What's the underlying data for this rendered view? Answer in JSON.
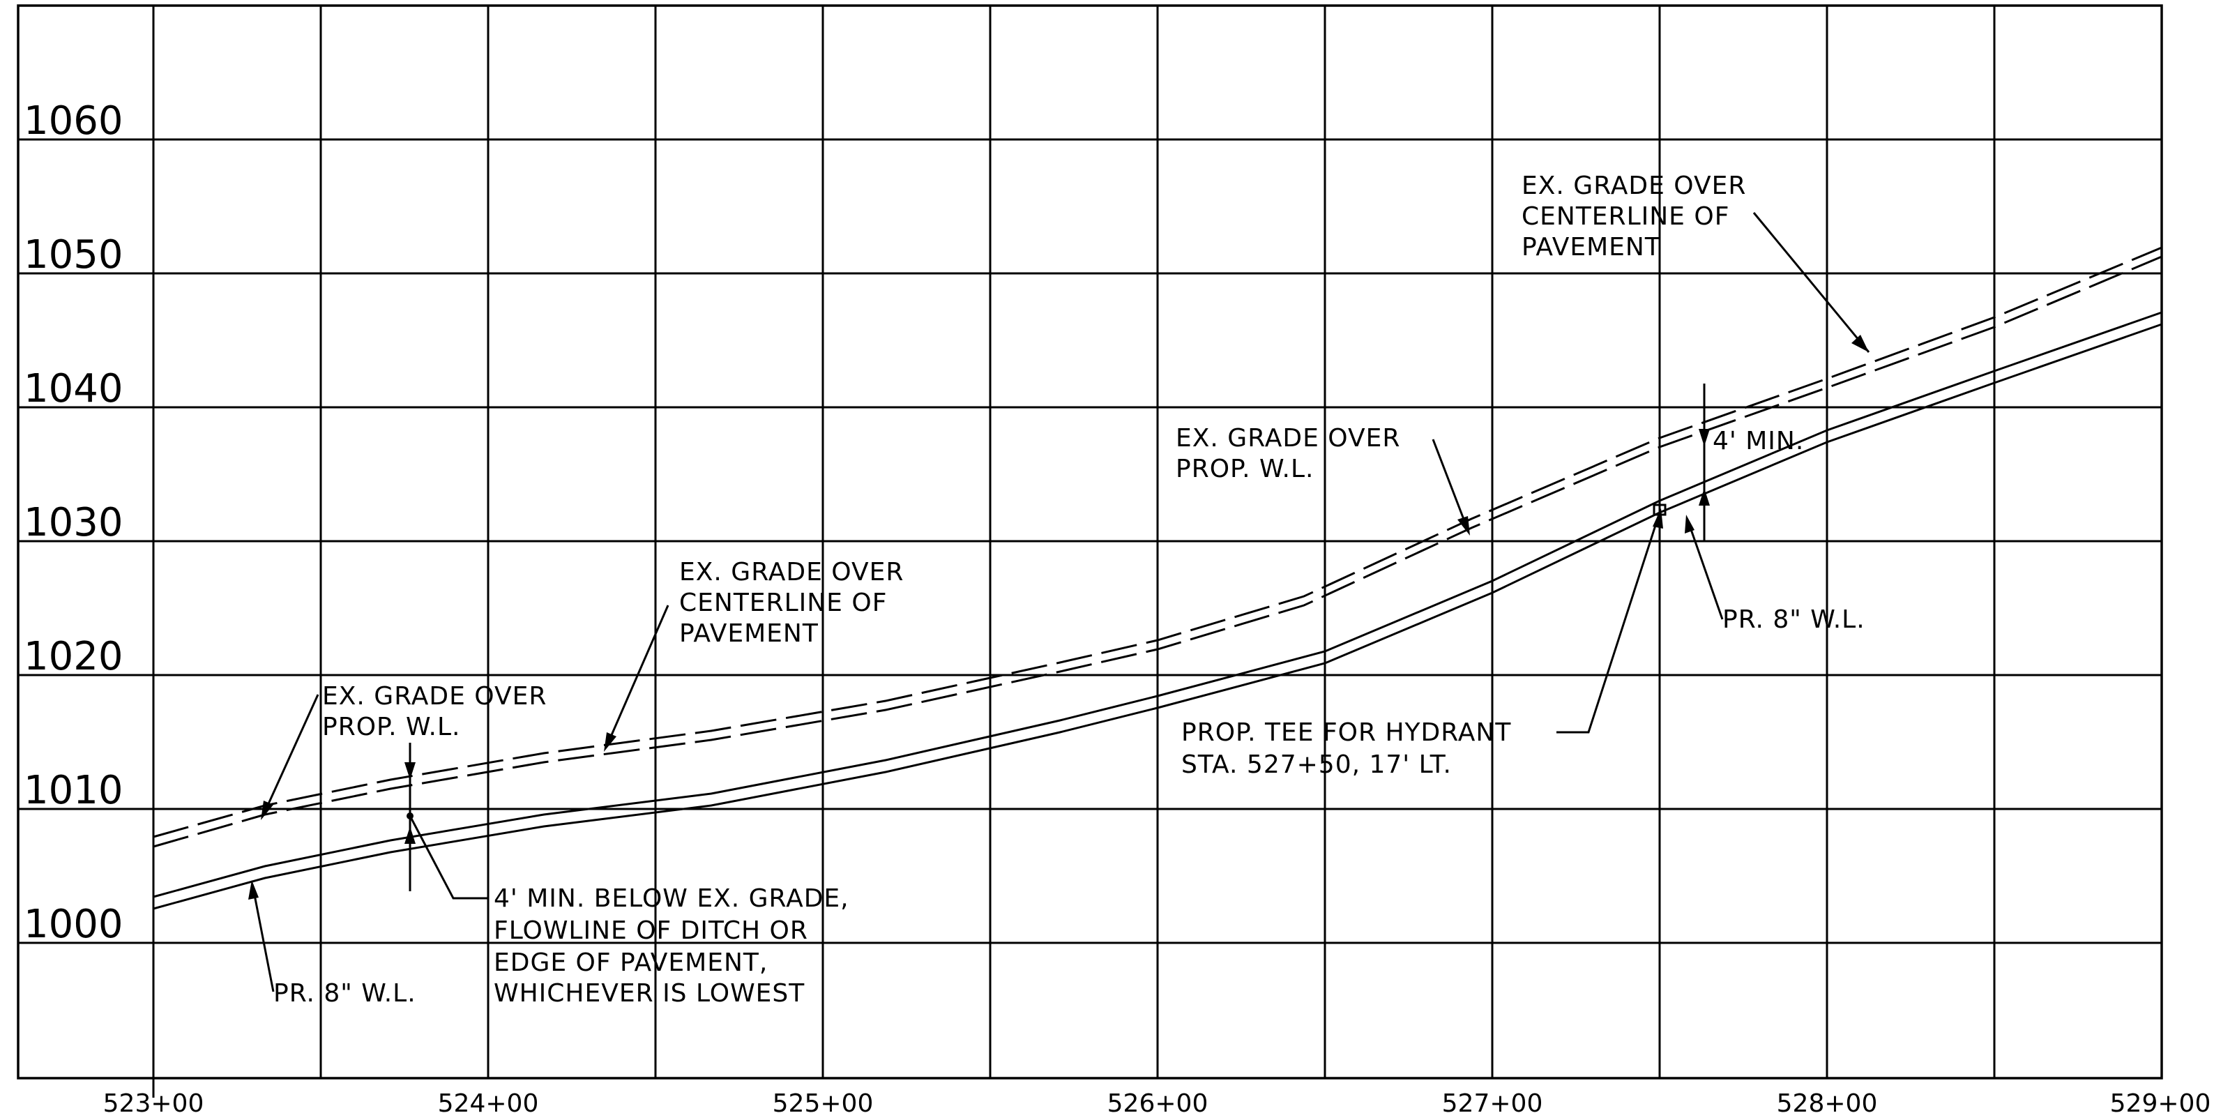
{
  "profile": {
    "elevation_labels": [
      "1060",
      "1050",
      "1040",
      "1030",
      "1020",
      "1010",
      "1000"
    ],
    "station_labels": [
      "523+00",
      "524+00",
      "525+00",
      "526+00",
      "527+00",
      "528+00",
      "529+00"
    ]
  },
  "notes": {
    "grade_cl_right": [
      "EX. GRADE OVER",
      "CENTERLINE OF",
      "PAVEMENT"
    ],
    "grade_wl_mid": [
      "EX. GRADE OVER",
      "PROP. W.L."
    ],
    "min_cover_right": "4' MIN.",
    "pipe_right": "PR. 8\" W.L.",
    "grade_cl_mid": [
      "EX. GRADE OVER",
      "CENTERLINE OF",
      "PAVEMENT"
    ],
    "grade_wl_left": [
      "EX. GRADE OVER",
      "PROP. W.L."
    ],
    "tee": [
      "PROP. TEE FOR HYDRANT",
      "STA. 527+50, 17' LT."
    ],
    "min_cover_left": [
      "4' MIN. BELOW EX. GRADE,",
      "FLOWLINE OF DITCH OR",
      "EDGE OF PAVEMENT,",
      "WHICHEVER IS LOWEST"
    ],
    "pipe_left": "PR. 8\" W.L."
  },
  "colors": {
    "linework": "#000000",
    "background": "#ffffff"
  }
}
